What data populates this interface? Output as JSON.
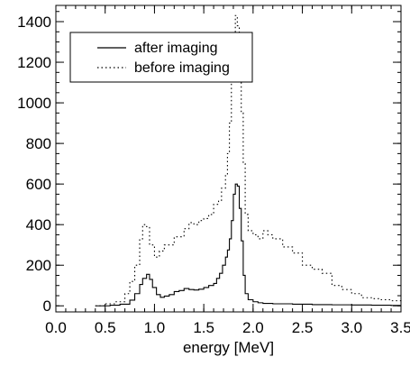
{
  "chart_data": {
    "type": "line",
    "title": "",
    "xlabel": "energy [MeV]",
    "ylabel": "",
    "xlim": [
      0.0,
      3.5
    ],
    "ylim": [
      -30,
      1480
    ],
    "x_ticks": [
      0.0,
      0.5,
      1.0,
      1.5,
      2.0,
      2.5,
      3.0,
      3.5
    ],
    "x_tick_labels": [
      "0.0",
      "0.5",
      "1.0",
      "1.5",
      "2.0",
      "2.5",
      "3.0",
      "3.5"
    ],
    "y_ticks": [
      0,
      200,
      400,
      600,
      800,
      1000,
      1200,
      1400
    ],
    "y_tick_labels": [
      "0",
      "200",
      "400",
      "600",
      "800",
      "1000",
      "1200",
      "1400"
    ],
    "grid": false,
    "legend_position": "top-left",
    "series": [
      {
        "name": "after imaging",
        "style": "solid",
        "x": [
          0.4,
          0.55,
          0.65,
          0.75,
          0.8,
          0.85,
          0.88,
          0.92,
          0.95,
          0.98,
          1.02,
          1.06,
          1.1,
          1.15,
          1.2,
          1.25,
          1.3,
          1.35,
          1.4,
          1.45,
          1.5,
          1.55,
          1.6,
          1.63,
          1.66,
          1.69,
          1.72,
          1.74,
          1.76,
          1.78,
          1.8,
          1.82,
          1.84,
          1.86,
          1.88,
          1.9,
          1.92,
          1.95,
          2.0,
          2.05,
          2.1,
          2.2,
          2.4,
          2.6,
          2.8,
          3.0,
          3.2,
          3.4,
          3.5
        ],
        "y": [
          0,
          3,
          8,
          28,
          60,
          105,
          135,
          155,
          130,
          90,
          55,
          42,
          48,
          55,
          70,
          75,
          85,
          80,
          78,
          82,
          90,
          100,
          110,
          135,
          160,
          200,
          240,
          275,
          330,
          420,
          550,
          600,
          590,
          480,
          320,
          150,
          60,
          30,
          20,
          15,
          12,
          10,
          8,
          6,
          5,
          4,
          3,
          2,
          2
        ]
      },
      {
        "name": "before imaging",
        "style": "dotted",
        "x": [
          0.4,
          0.5,
          0.6,
          0.7,
          0.75,
          0.8,
          0.85,
          0.88,
          0.92,
          0.95,
          1.0,
          1.05,
          1.1,
          1.2,
          1.3,
          1.35,
          1.4,
          1.45,
          1.5,
          1.55,
          1.6,
          1.65,
          1.68,
          1.72,
          1.74,
          1.76,
          1.78,
          1.8,
          1.82,
          1.84,
          1.86,
          1.88,
          1.9,
          1.92,
          1.95,
          2.0,
          2.05,
          2.1,
          2.15,
          2.2,
          2.3,
          2.4,
          2.5,
          2.6,
          2.7,
          2.8,
          2.9,
          3.0,
          3.1,
          3.2,
          3.3,
          3.4,
          3.5
        ],
        "y": [
          0,
          10,
          20,
          60,
          120,
          200,
          330,
          400,
          390,
          300,
          240,
          270,
          300,
          340,
          380,
          410,
          400,
          420,
          430,
          450,
          500,
          520,
          580,
          650,
          750,
          900,
          1150,
          1300,
          1430,
          1380,
          1200,
          950,
          700,
          450,
          370,
          350,
          330,
          370,
          350,
          330,
          290,
          260,
          200,
          180,
          160,
          100,
          80,
          60,
          40,
          35,
          30,
          25,
          20
        ]
      }
    ]
  }
}
